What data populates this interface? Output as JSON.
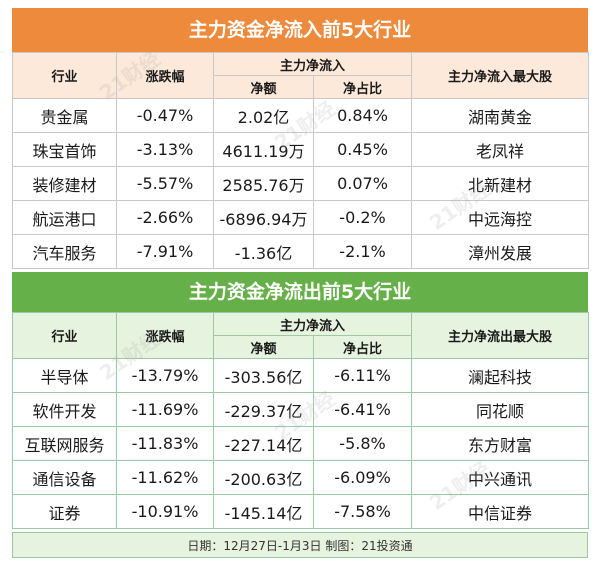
{
  "inflow": {
    "title": "主力资金净流入前5大行业",
    "headers": {
      "industry": "行业",
      "change": "涨跌幅",
      "main_net": "主力净流入",
      "amount": "净额",
      "ratio": "净占比",
      "top_stock": "主力净流入最大股"
    },
    "rows": [
      {
        "industry": "贵金属",
        "change": "-0.47%",
        "amount": "2.02亿",
        "ratio": "0.84%",
        "stock": "湖南黄金"
      },
      {
        "industry": "珠宝首饰",
        "change": "-3.13%",
        "amount": "4611.19万",
        "ratio": "0.45%",
        "stock": "老凤祥"
      },
      {
        "industry": "装修建材",
        "change": "-5.57%",
        "amount": "2585.76万",
        "ratio": "0.07%",
        "stock": "北新建材"
      },
      {
        "industry": "航运港口",
        "change": "-2.66%",
        "amount": "-6896.94万",
        "ratio": "-0.2%",
        "stock": "中远海控"
      },
      {
        "industry": "汽车服务",
        "change": "-7.91%",
        "amount": "-1.36亿",
        "ratio": "-2.1%",
        "stock": "漳州发展"
      }
    ]
  },
  "outflow": {
    "title": "主力资金净流出前5大行业",
    "headers": {
      "industry": "行业",
      "change": "涨跌幅",
      "main_net": "主力净流入",
      "amount": "净额",
      "ratio": "净占比",
      "top_stock": "主力净流出最大股"
    },
    "rows": [
      {
        "industry": "半导体",
        "change": "-13.79%",
        "amount": "-303.56亿",
        "ratio": "-6.11%",
        "stock": "澜起科技"
      },
      {
        "industry": "软件开发",
        "change": "-11.69%",
        "amount": "-229.37亿",
        "ratio": "-6.41%",
        "stock": "同花顺"
      },
      {
        "industry": "互联网服务",
        "change": "-11.83%",
        "amount": "-227.14亿",
        "ratio": "-5.8%",
        "stock": "东方财富"
      },
      {
        "industry": "通信设备",
        "change": "-11.62%",
        "amount": "-200.63亿",
        "ratio": "-6.09%",
        "stock": "中兴通讯"
      },
      {
        "industry": "证券",
        "change": "-10.91%",
        "amount": "-145.14亿",
        "ratio": "-7.58%",
        "stock": "中信证券"
      }
    ]
  },
  "footer": "日期：12月27日-1月3日 制图：21投资通",
  "watermark": "21财经"
}
